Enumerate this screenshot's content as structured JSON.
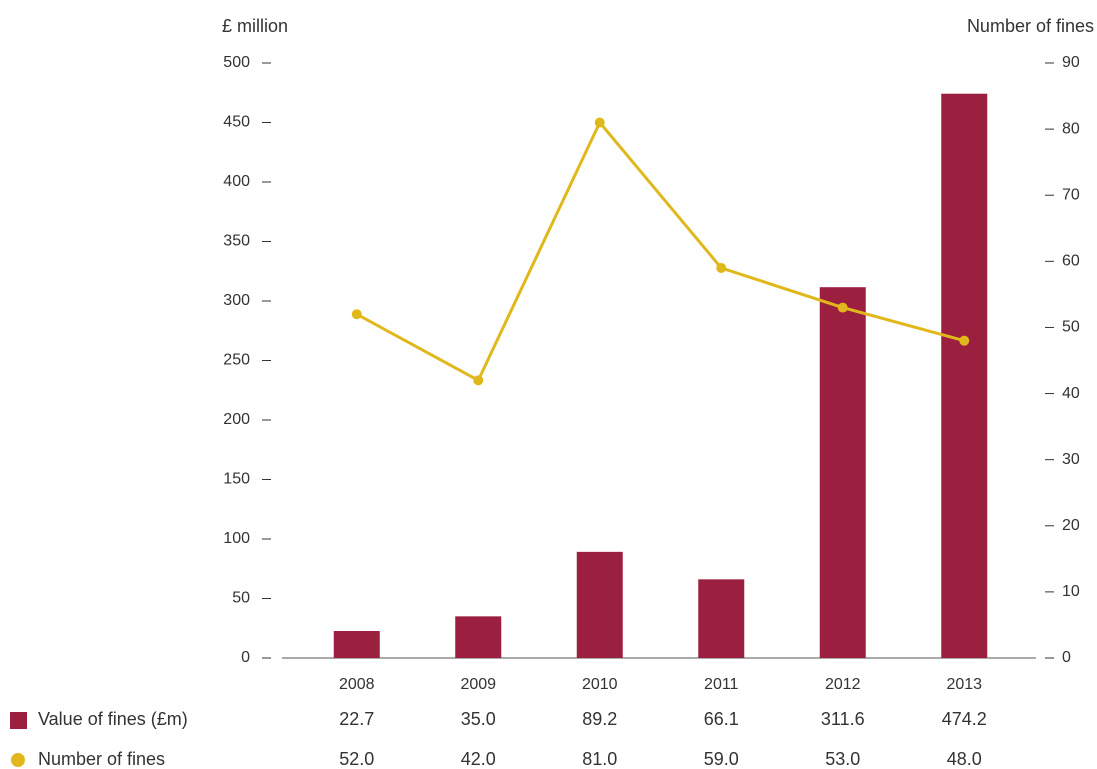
{
  "chart_data": {
    "type": "bar",
    "y_label": "£ million",
    "y2_label": "Number of fines",
    "categories": [
      "2008",
      "2009",
      "2010",
      "2011",
      "2012",
      "2013"
    ],
    "series": [
      {
        "name": "Value of fines (£m)",
        "type": "bar",
        "color": "#9b1f3f",
        "values": [
          22.7,
          35.0,
          89.2,
          66.1,
          311.6,
          474.2
        ],
        "value_labels": [
          "22.7",
          "35.0",
          "89.2",
          "66.1",
          "311.6",
          "474.2"
        ]
      },
      {
        "name": "Number of fines",
        "type": "line",
        "axis": "y2",
        "color": "#e0b81c",
        "values": [
          52,
          42,
          81,
          59,
          53,
          48
        ],
        "value_labels": [
          "52.0",
          "42.0",
          "81.0",
          "59.0",
          "53.0",
          "48.0"
        ]
      }
    ],
    "ylim": [
      0,
      500
    ],
    "yticks": [
      0,
      50,
      100,
      150,
      200,
      250,
      300,
      350,
      400,
      450,
      500
    ],
    "y2lim": [
      0,
      90
    ],
    "y2ticks": [
      0,
      10,
      20,
      30,
      40,
      50,
      60,
      70,
      80,
      90
    ]
  }
}
